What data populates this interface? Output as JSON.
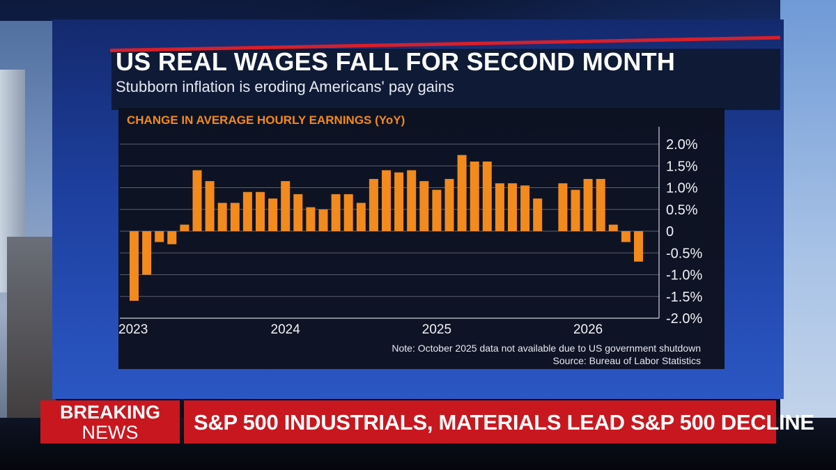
{
  "broadcast": {
    "title": "US REAL WAGES FALL FOR SECOND MONTH",
    "subtitle": "Stubborn inflation is eroding Americans' pay gains",
    "breaking_line1": "BREAKING",
    "breaking_line2": "NEWS",
    "ticker_headline": "S&P 500 INDUSTRIALS, MATERIALS LEAD S&P 500 DECLINE"
  },
  "colors": {
    "bar": "#f28a1c",
    "chart_title": "#f28a1c",
    "breaking_red": "#c8171f",
    "title_rule": "#d81f2a"
  },
  "chart_data": {
    "type": "bar",
    "title": "CHANGE IN AVERAGE HOURLY EARNINGS (YoY)",
    "note": "Note: October 2025 data not available due to US government shutdown",
    "source": "Source: Bureau of Labor Statistics",
    "x_tick_labels": [
      "2023",
      "2024",
      "2025",
      "2026"
    ],
    "y_tick_labels": [
      "2.0%",
      "1.5%",
      "1.0%",
      "0.5%",
      "0",
      "-0.5%",
      "-1.0%",
      "-1.5%",
      "-2.0%"
    ],
    "ylim": [
      -2.0,
      2.0
    ],
    "y_axis_side": "right",
    "grid": true,
    "categories": [
      "2023-01",
      "2023-02",
      "2023-03",
      "2023-04",
      "2023-05",
      "2023-06",
      "2023-07",
      "2023-08",
      "2023-09",
      "2023-10",
      "2023-11",
      "2023-12",
      "2024-01",
      "2024-02",
      "2024-03",
      "2024-04",
      "2024-05",
      "2024-06",
      "2024-07",
      "2024-08",
      "2024-09",
      "2024-10",
      "2024-11",
      "2024-12",
      "2025-01",
      "2025-02",
      "2025-03",
      "2025-04",
      "2025-05",
      "2025-06",
      "2025-07",
      "2025-08",
      "2025-09",
      "2025-10",
      "2025-11",
      "2025-12",
      "2026-01",
      "2026-02",
      "2026-03",
      "2026-04",
      "2026-05"
    ],
    "values": [
      -1.6,
      -1.0,
      -0.25,
      -0.3,
      0.15,
      1.4,
      1.15,
      0.65,
      0.65,
      0.9,
      0.9,
      0.75,
      1.15,
      0.85,
      0.55,
      0.5,
      0.85,
      0.85,
      0.65,
      1.2,
      1.4,
      1.35,
      1.4,
      1.15,
      0.95,
      1.2,
      1.75,
      1.6,
      1.6,
      1.1,
      1.1,
      1.05,
      0.75,
      null,
      1.1,
      0.95,
      1.2,
      1.2,
      0.15,
      -0.25,
      -0.7
    ]
  }
}
